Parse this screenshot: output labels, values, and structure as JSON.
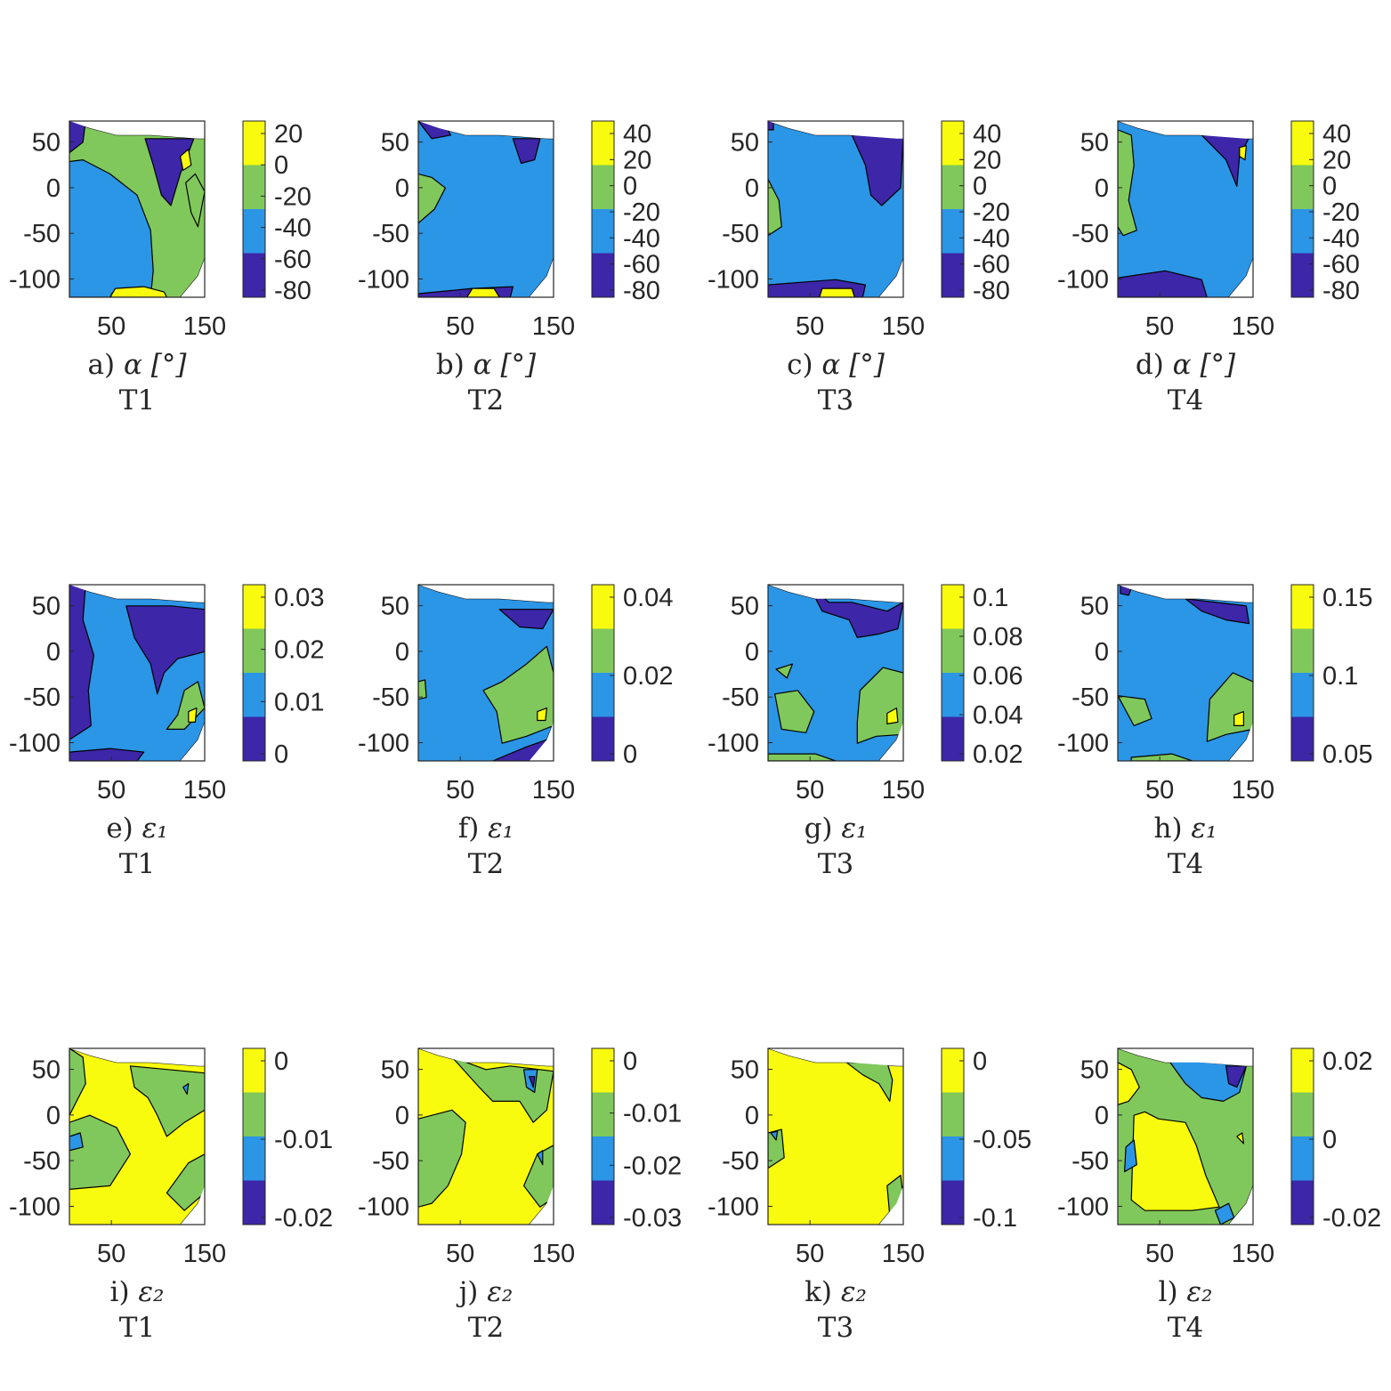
{
  "colors": {
    "level1": "#3d26a8",
    "level2": "#2b95e6",
    "level3": "#80c85b",
    "level4": "#f9fb0e",
    "axis": "#262626",
    "contour": "#000000",
    "background": "#ffffff"
  },
  "chart_data": [
    {
      "type": "contour",
      "label": "a)",
      "quantity": "α [°]",
      "caption_line2": "T1",
      "x_ticks": [
        50,
        150
      ],
      "y_ticks": [
        50,
        0,
        -50,
        -100
      ],
      "colorbar_ticks": [
        20,
        0,
        -20,
        -40,
        -60,
        -80
      ],
      "colorbar_levels": [
        -90,
        -60,
        -40,
        -20,
        10
      ]
    },
    {
      "type": "contour",
      "label": "b)",
      "quantity": "α [°]",
      "caption_line2": "T2",
      "x_ticks": [
        50,
        150
      ],
      "y_ticks": [
        50,
        0,
        -50,
        -100
      ],
      "colorbar_ticks": [
        40,
        20,
        0,
        -20,
        -40,
        -60,
        -80
      ],
      "colorbar_levels": [
        -90,
        -60,
        -40,
        -20,
        10
      ]
    },
    {
      "type": "contour",
      "label": "c)",
      "quantity": "α [°]",
      "caption_line2": "T3",
      "x_ticks": [
        50,
        150
      ],
      "y_ticks": [
        50,
        0,
        -50,
        -100
      ],
      "colorbar_ticks": [
        40,
        20,
        0,
        -20,
        -40,
        -60,
        -80
      ],
      "colorbar_levels": [
        -90,
        -60,
        -40,
        -20,
        10
      ]
    },
    {
      "type": "contour",
      "label": "d)",
      "quantity": "α [°]",
      "caption_line2": "T4",
      "x_ticks": [
        50,
        150
      ],
      "y_ticks": [
        50,
        0,
        -50,
        -100
      ],
      "colorbar_ticks": [
        40,
        20,
        0,
        -20,
        -40,
        -60,
        -80
      ],
      "colorbar_levels": [
        -90,
        -60,
        -40,
        -20,
        10
      ]
    },
    {
      "type": "contour",
      "label": "e)",
      "quantity": "ε₁",
      "caption_line2": "T1",
      "x_ticks": [
        50,
        150
      ],
      "y_ticks": [
        50,
        0,
        -50,
        -100
      ],
      "colorbar_ticks": [
        "0.03",
        "0.02",
        "0.01",
        "0"
      ],
      "colorbar_levels": [
        0,
        0.01,
        0.02,
        0.03
      ]
    },
    {
      "type": "contour",
      "label": "f)",
      "quantity": "ε₁",
      "caption_line2": "T2",
      "x_ticks": [
        50,
        150
      ],
      "y_ticks": [
        50,
        0,
        -50,
        -100
      ],
      "colorbar_ticks": [
        "0.04",
        "0.02",
        "0"
      ],
      "colorbar_levels": [
        0,
        0.01,
        0.02,
        0.04
      ]
    },
    {
      "type": "contour",
      "label": "g)",
      "quantity": "ε₁",
      "caption_line2": "T3",
      "x_ticks": [
        50,
        150
      ],
      "y_ticks": [
        50,
        0,
        -50,
        -100
      ],
      "colorbar_ticks": [
        "0.1",
        "0.08",
        "0.06",
        "0.04",
        "0.02"
      ],
      "colorbar_levels": [
        0.03,
        0.04,
        0.06,
        0.08
      ]
    },
    {
      "type": "contour",
      "label": "h)",
      "quantity": "ε₁",
      "caption_line2": "T4",
      "x_ticks": [
        50,
        150
      ],
      "y_ticks": [
        50,
        0,
        -50,
        -100
      ],
      "colorbar_ticks": [
        "0.15",
        "0.1",
        "0.05"
      ],
      "colorbar_levels": [
        0,
        0.05,
        0.1,
        0.15
      ]
    },
    {
      "type": "contour",
      "label": "i)",
      "quantity": "ε₂",
      "caption_line2": "T1",
      "x_ticks": [
        50,
        150
      ],
      "y_ticks": [
        50,
        0,
        -50,
        -100
      ],
      "colorbar_ticks": [
        "0",
        "-0.01",
        "-0.02"
      ],
      "colorbar_levels": [
        -0.02,
        -0.01,
        0,
        0.01
      ]
    },
    {
      "type": "contour",
      "label": "j)",
      "quantity": "ε₂",
      "caption_line2": "T2",
      "x_ticks": [
        50,
        150
      ],
      "y_ticks": [
        50,
        0,
        -50,
        -100
      ],
      "colorbar_ticks": [
        "0",
        "-0.01",
        "-0.02",
        "-0.03"
      ],
      "colorbar_levels": [
        -0.03,
        -0.02,
        -0.01,
        0
      ]
    },
    {
      "type": "contour",
      "label": "k)",
      "quantity": "ε₂",
      "caption_line2": "T3",
      "x_ticks": [
        50,
        150
      ],
      "y_ticks": [
        50,
        0,
        -50,
        -100
      ],
      "colorbar_ticks": [
        "0",
        "-0.05",
        "-0.1"
      ],
      "colorbar_levels": [
        -0.1,
        -0.05,
        0,
        0.05
      ]
    },
    {
      "type": "contour",
      "label": "l)",
      "quantity": "ε₂",
      "caption_line2": "T4",
      "x_ticks": [
        50,
        150
      ],
      "y_ticks": [
        50,
        0,
        -50,
        -100
      ],
      "colorbar_ticks": [
        "0.02",
        "0",
        "-0.02"
      ],
      "colorbar_levels": [
        -0.02,
        0,
        0.02,
        0.04
      ]
    }
  ]
}
